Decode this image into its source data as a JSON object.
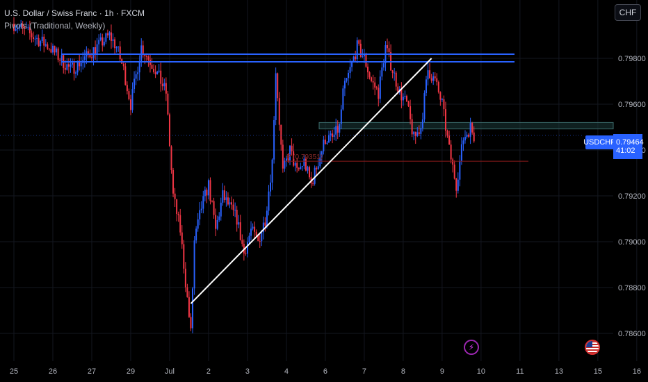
{
  "header": {
    "title": "U.S. Dollar / Swiss Franc · 1h · FXCM",
    "indicator": "Pivots (Traditional, Weekly)"
  },
  "currency_button": "CHF",
  "price_tag": {
    "symbol": "USDCHF",
    "price": "0.79464",
    "countdown": "41:02"
  },
  "pivot_label": "P (0.79351)",
  "icons": {
    "events": "lightning-icon",
    "flag": "us-flag-icon"
  },
  "colors": {
    "background": "#000000",
    "up_candle": "#2962ff",
    "down_candle": "#f23645",
    "resistance": "#2962ff",
    "trendline": "#ffffff",
    "zone": "#1b3a3a",
    "pivot": "#8b1a1a"
  },
  "chart_data": {
    "type": "candlestick",
    "title": "U.S. Dollar / Swiss Franc · 1h · FXCM",
    "ylim": [
      0.786,
      0.7995
    ],
    "y_ticks": [
      "0.79800",
      "0.79600",
      "0.79400",
      "0.79200",
      "0.79000",
      "0.78800",
      "0.78600"
    ],
    "y_tick_values": [
      0.798,
      0.796,
      0.794,
      0.792,
      0.79,
      0.788,
      0.786
    ],
    "x_ticks": [
      "25",
      "26",
      "27",
      "29",
      "Jul",
      "2",
      "3",
      "4",
      "6",
      "7",
      "8",
      "9",
      "10",
      "11",
      "13",
      "15",
      "16"
    ],
    "x_tick_index": [
      0,
      11,
      22,
      33,
      44,
      55,
      66,
      77,
      88,
      99,
      110,
      121,
      132,
      143,
      154,
      165,
      176
    ],
    "price_path": [
      [
        0,
        0.7995
      ],
      [
        5,
        0.799
      ],
      [
        10,
        0.7985
      ],
      [
        16,
        0.7975
      ],
      [
        20,
        0.798
      ],
      [
        27,
        0.799
      ],
      [
        29,
        0.7985
      ],
      [
        31,
        0.7975
      ],
      [
        33,
        0.796
      ],
      [
        36,
        0.7985
      ],
      [
        40,
        0.7975
      ],
      [
        43,
        0.7965
      ],
      [
        45,
        0.792
      ],
      [
        47,
        0.7905
      ],
      [
        50,
        0.786
      ],
      [
        51,
        0.79
      ],
      [
        53,
        0.7915
      ],
      [
        55,
        0.7925
      ],
      [
        57,
        0.7905
      ],
      [
        59,
        0.792
      ],
      [
        61,
        0.7915
      ],
      [
        63,
        0.791
      ],
      [
        65,
        0.7895
      ],
      [
        67,
        0.7905
      ],
      [
        69,
        0.79
      ],
      [
        71,
        0.791
      ],
      [
        73,
        0.7935
      ],
      [
        74,
        0.7975
      ],
      [
        76,
        0.793
      ],
      [
        78,
        0.794
      ],
      [
        80,
        0.793
      ],
      [
        82,
        0.7935
      ],
      [
        84,
        0.7925
      ],
      [
        86,
        0.7935
      ],
      [
        88,
        0.7945
      ],
      [
        90,
        0.7945
      ],
      [
        92,
        0.795
      ],
      [
        93,
        0.7965
      ],
      [
        95,
        0.7975
      ],
      [
        97,
        0.7985
      ],
      [
        99,
        0.798
      ],
      [
        101,
        0.797
      ],
      [
        103,
        0.7965
      ],
      [
        105,
        0.7985
      ],
      [
        107,
        0.7975
      ],
      [
        109,
        0.7965
      ],
      [
        111,
        0.796
      ],
      [
        113,
        0.7945
      ],
      [
        115,
        0.795
      ],
      [
        117,
        0.7975
      ],
      [
        119,
        0.797
      ],
      [
        121,
        0.796
      ],
      [
        123,
        0.794
      ],
      [
        125,
        0.7925
      ],
      [
        127,
        0.7945
      ],
      [
        129,
        0.795
      ],
      [
        130,
        0.7946
      ]
    ],
    "resistance_lines": [
      0.79818,
      0.79785
    ],
    "zone": [
      0.7952,
      0.79492
    ],
    "pivot": 0.79351,
    "trendline": {
      "from": [
        50,
        0.7873
      ],
      "to": [
        118,
        0.798
      ]
    }
  }
}
